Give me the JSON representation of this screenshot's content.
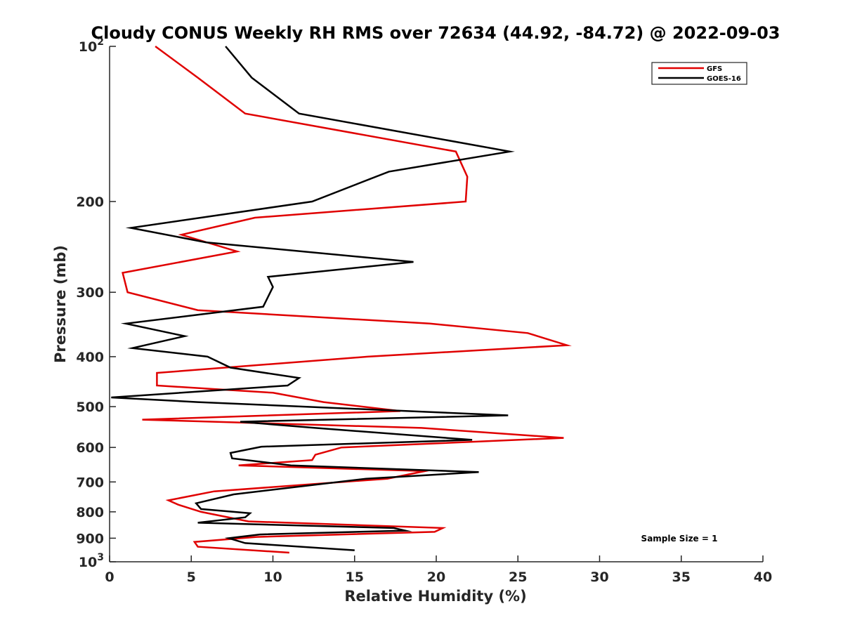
{
  "chart_data": {
    "type": "line",
    "title": "Cloudy CONUS Weekly RH RMS over 72634 (44.92, -84.72) @ 2022-09-03",
    "xlabel": "Relative Humidity (%)",
    "ylabel": "Pressure (mb)",
    "xlim": [
      0,
      40
    ],
    "ylim": [
      100,
      1000
    ],
    "y_scale": "log",
    "y_reversed": true,
    "grid": false,
    "x_ticks": [
      0,
      5,
      10,
      15,
      20,
      25,
      30,
      35,
      40
    ],
    "y_ticks": [
      {
        "value": 100,
        "base": "10",
        "exp": "2"
      },
      {
        "value": 200,
        "label": "200"
      },
      {
        "value": 300,
        "label": "300"
      },
      {
        "value": 400,
        "label": "400"
      },
      {
        "value": 500,
        "label": "500"
      },
      {
        "value": 600,
        "label": "600"
      },
      {
        "value": 700,
        "label": "700"
      },
      {
        "value": 800,
        "label": "800"
      },
      {
        "value": 900,
        "label": "900"
      },
      {
        "value": 1000,
        "base": "10",
        "exp": "3"
      }
    ],
    "legend_position": "top-right",
    "annotation": "Sample Size = 1",
    "series": [
      {
        "name": "GFS",
        "color": "#e00000",
        "points": [
          [
            2.8,
            100
          ],
          [
            5.4,
            115
          ],
          [
            8.3,
            135
          ],
          [
            21.2,
            160
          ],
          [
            21.9,
            179
          ],
          [
            21.8,
            200
          ],
          [
            8.9,
            215
          ],
          [
            4.4,
            232
          ],
          [
            7.8,
            250
          ],
          [
            0.8,
            275
          ],
          [
            1.1,
            300
          ],
          [
            5.4,
            325
          ],
          [
            19.6,
            345
          ],
          [
            25.6,
            360
          ],
          [
            28.0,
            380
          ],
          [
            15.8,
            400
          ],
          [
            2.9,
            430
          ],
          [
            2.9,
            455
          ],
          [
            10.0,
            470
          ],
          [
            13.1,
            490
          ],
          [
            17.8,
            510
          ],
          [
            2.0,
            530
          ],
          [
            19.1,
            550
          ],
          [
            27.8,
            575
          ],
          [
            14.2,
            600
          ],
          [
            12.6,
            620
          ],
          [
            12.4,
            635
          ],
          [
            7.9,
            650
          ],
          [
            19.3,
            667
          ],
          [
            17.0,
            690
          ],
          [
            6.4,
            730
          ],
          [
            3.6,
            760
          ],
          [
            4.2,
            775
          ],
          [
            5.6,
            800
          ],
          [
            8.5,
            835
          ],
          [
            20.4,
            860
          ],
          [
            19.9,
            875
          ],
          [
            9.0,
            895
          ],
          [
            5.2,
            915
          ],
          [
            5.4,
            935
          ],
          [
            11.0,
            960
          ]
        ]
      },
      {
        "name": "GOES-16",
        "color": "#000000",
        "points": [
          [
            7.1,
            100
          ],
          [
            8.7,
            115
          ],
          [
            11.6,
            135
          ],
          [
            24.5,
            160
          ],
          [
            17.1,
            175
          ],
          [
            12.4,
            200
          ],
          [
            1.3,
            225
          ],
          [
            5.9,
            240
          ],
          [
            18.6,
            262
          ],
          [
            9.7,
            280
          ],
          [
            10.0,
            293
          ],
          [
            9.4,
            320
          ],
          [
            1.0,
            345
          ],
          [
            4.6,
            365
          ],
          [
            1.4,
            385
          ],
          [
            6.0,
            400
          ],
          [
            7.4,
            420
          ],
          [
            11.6,
            440
          ],
          [
            10.9,
            455
          ],
          [
            0.1,
            480
          ],
          [
            5.4,
            490
          ],
          [
            24.4,
            520
          ],
          [
            8.0,
            535
          ],
          [
            12.6,
            550
          ],
          [
            22.2,
            580
          ],
          [
            9.3,
            598
          ],
          [
            7.4,
            615
          ],
          [
            7.5,
            630
          ],
          [
            11.1,
            650
          ],
          [
            22.6,
            670
          ],
          [
            15.7,
            690
          ],
          [
            7.6,
            740
          ],
          [
            5.3,
            770
          ],
          [
            5.6,
            790
          ],
          [
            8.6,
            805
          ],
          [
            8.3,
            820
          ],
          [
            5.4,
            840
          ],
          [
            17.4,
            860
          ],
          [
            18.1,
            870
          ],
          [
            9.2,
            885
          ],
          [
            7.3,
            900
          ],
          [
            8.3,
            920
          ],
          [
            15.0,
            950
          ]
        ]
      }
    ]
  }
}
